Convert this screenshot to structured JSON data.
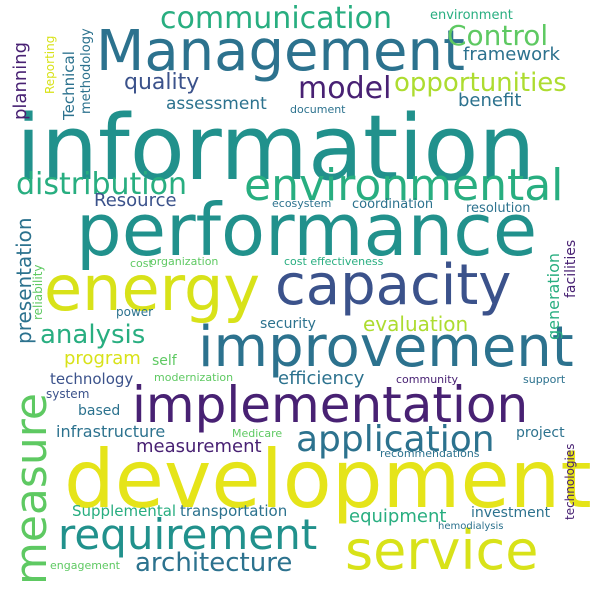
{
  "words": {
    "information": "information",
    "performance": "performance",
    "development": "development",
    "management": "Management",
    "capacity": "capacity",
    "energy": "energy",
    "improvement": "improvement",
    "implementation": "implementation",
    "environmental": "environmental",
    "service": "service",
    "measure": "measure",
    "requirement": "requirement",
    "application": "application",
    "distribution": "distribution",
    "communication": "communication",
    "model": "model",
    "opportunities": "opportunities",
    "control": "Control",
    "analysis": "analysis",
    "architecture": "architecture",
    "evaluation": "evaluation",
    "quality": "quality",
    "framework": "framework",
    "benefit": "benefit",
    "assessment": "assessment",
    "measurement": "measurement",
    "efficiency": "efficiency",
    "program": "program",
    "presentation": "presentation",
    "planning": "planning",
    "resource": "Resource",
    "equipment": "equipment",
    "infrastructure": "infrastructure",
    "technology": "technology",
    "transportation": "transportation",
    "generation": "generation",
    "supplemental": "Supplemental",
    "security": "security",
    "project": "project",
    "investment": "investment",
    "technical": "Technical",
    "self": "self",
    "based": "based",
    "coordination": "coordination",
    "resolution": "resolution",
    "facilities": "facilities",
    "methodology": "methodology",
    "environment": "environment",
    "reporting": "Reporting",
    "document": "document",
    "ecosystem": "ecosystem",
    "cost": "cost",
    "organization": "organization",
    "cost_effectiveness": "cost effectiveness",
    "reliability": "reliability",
    "power": "power",
    "modernization": "modernization",
    "community": "community",
    "support": "support",
    "system": "system",
    "medicare": "Medicare",
    "recommendations": "recommendations",
    "technologies": "technologies",
    "hemodialysis": "hemodialysis",
    "engagement": "engagement"
  },
  "palette": {
    "dark_purple": "#482173",
    "indigo": "#3b528b",
    "blue": "#2c728e",
    "teal": "#21918c",
    "green_teal": "#28ae80",
    "green": "#5ec962",
    "lime": "#addc30",
    "yellow": "#d8e219",
    "bright_yellow": "#e5e419"
  }
}
